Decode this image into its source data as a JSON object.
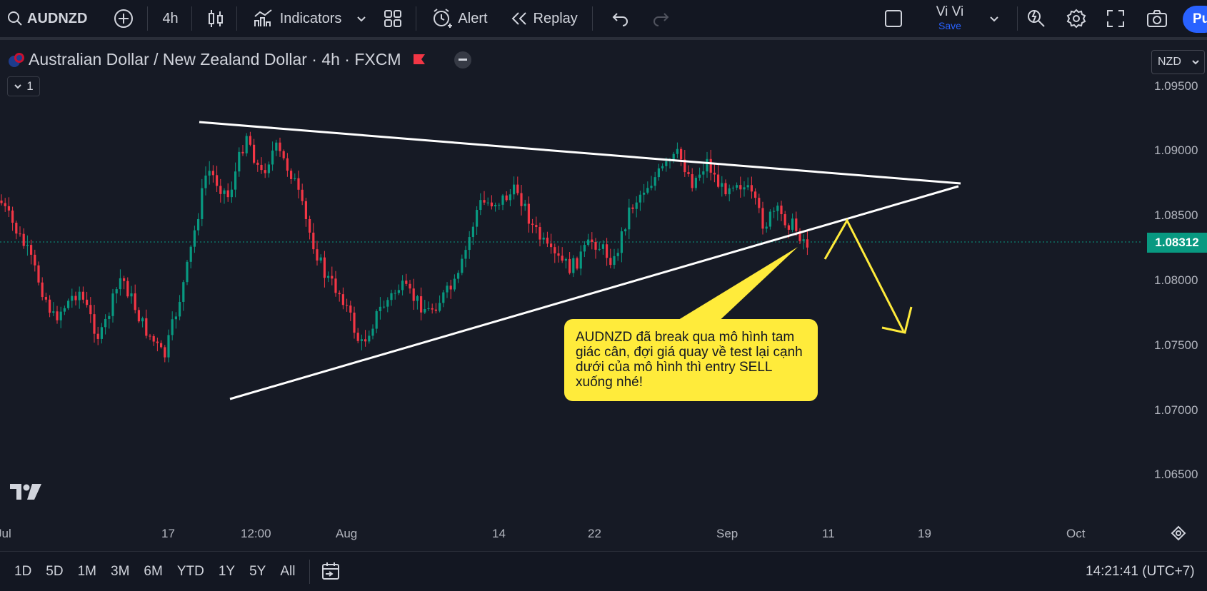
{
  "topbar": {
    "symbol": "AUDNZD",
    "interval": "4h",
    "indicators_label": "Indicators",
    "alert_label": "Alert",
    "replay_label": "Replay",
    "layout_name": "Vi Vi",
    "save_label": "Save",
    "publish_label": "Pu",
    "accent_color": "#2962ff"
  },
  "legend": {
    "title": "Australian Dollar / New Zealand Dollar · 4h · FXCM",
    "collapse_count": "1"
  },
  "price_scale": {
    "currency": "NZD",
    "labels": [
      "1.09500",
      "1.09000",
      "1.08500",
      "1.08000",
      "1.07500",
      "1.07000",
      "1.06500"
    ],
    "last_price": "1.08312",
    "last_price_color": "#089981"
  },
  "time_scale": {
    "labels": [
      "Jul",
      "17",
      "12:00",
      "Aug",
      "14",
      "22",
      "Sep",
      "11",
      "19",
      "Oct"
    ]
  },
  "annotation": {
    "text": "AUDNZD đã break qua mô hình tam giác cân, đợi giá quay về test lại cạnh dưới của mô hình thì entry SELL xuống nhé!",
    "color": "#ffeb3b"
  },
  "bottombar": {
    "ranges": [
      "1D",
      "5D",
      "1M",
      "3M",
      "6M",
      "YTD",
      "1Y",
      "5Y",
      "All"
    ],
    "clock": "14:21:41 (UTC+7)"
  },
  "colors": {
    "up_candle": "#089981",
    "down_candle": "#f23645",
    "background": "#161a25"
  },
  "logo_text": "TV"
}
